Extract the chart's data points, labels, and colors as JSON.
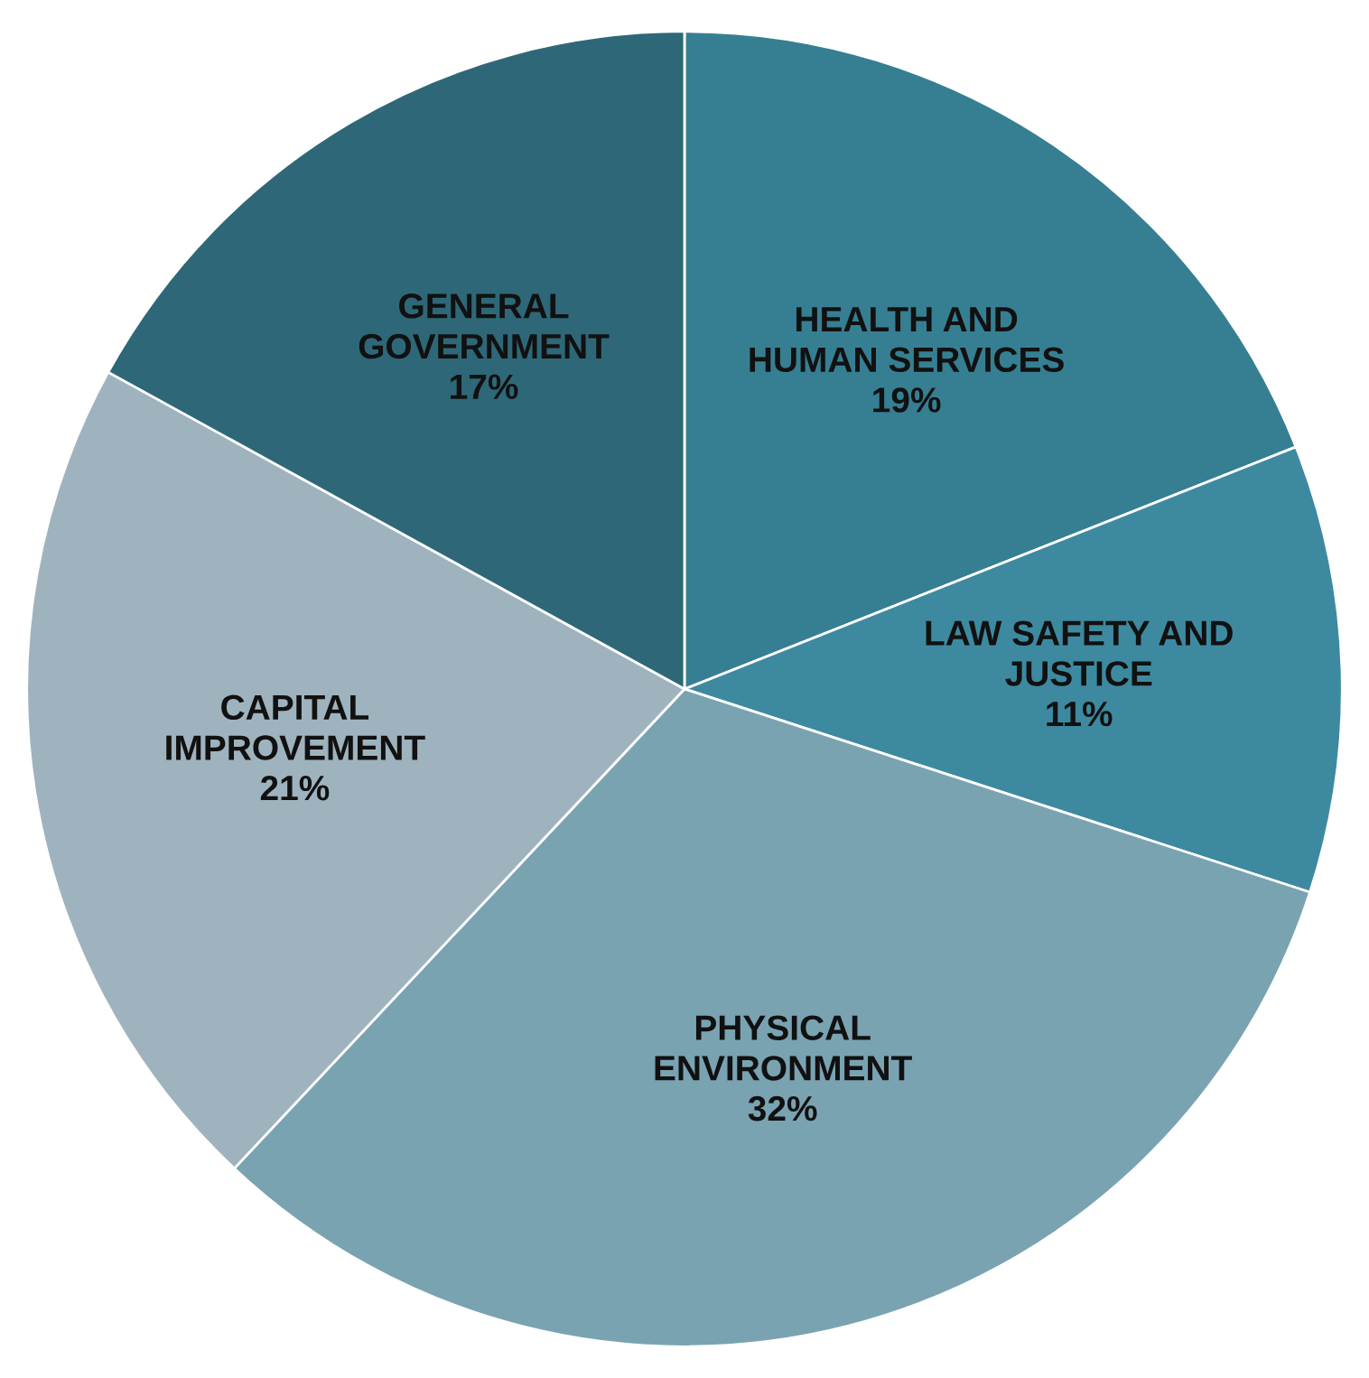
{
  "chart_data": {
    "type": "pie",
    "categories": [
      "HEALTH AND\nHUMAN SERVICES",
      "LAW SAFETY AND\nJUSTICE",
      "PHYSICAL\nENVIRONMENT",
      "CAPITAL\nIMPROVEMENT",
      "GENERAL\nGOVERNMENT"
    ],
    "values": [
      19,
      11,
      32,
      21,
      17
    ],
    "value_labels": [
      "19%",
      "11%",
      "32%",
      "21%",
      "17%"
    ],
    "colors": [
      "#367f93",
      "#3d8aa0",
      "#7aa3b2",
      "#9eb3be",
      "#2e6878"
    ]
  }
}
